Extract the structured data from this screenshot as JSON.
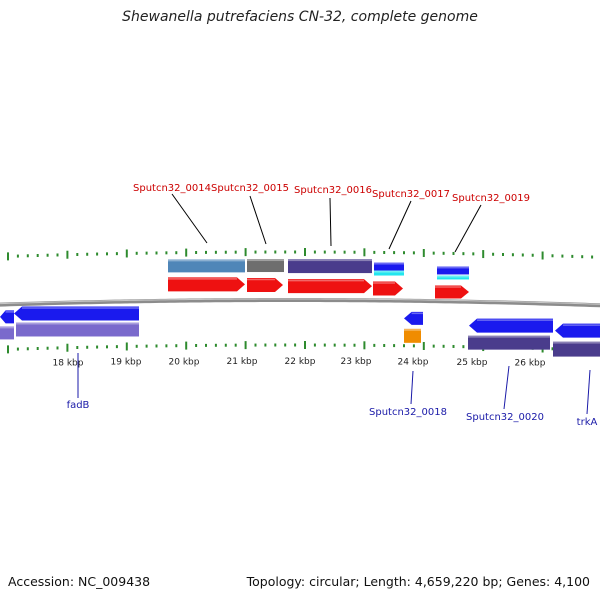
{
  "title": "Shewanella putrefaciens CN-32, complete genome",
  "footer": {
    "accession": "Accession: NC_009438",
    "stats": "Topology: circular; Length: 4,659,220 bp; Genes: 4,100"
  },
  "colors": {
    "backbone": "#8c8c8c",
    "tick": "#2e8b2e",
    "forward_cds": "#ee1111",
    "reverse_cds": "#1a1aee",
    "teal": "#4f86b8",
    "gray": "#6e6e6e",
    "slate": "#4a3c8c",
    "purple": "#7a6acc",
    "cyan": "#22e6ee",
    "orange": "#f08c00",
    "label_red": "#cc0000",
    "label_blue": "#1a1aa8"
  },
  "scale": {
    "labels": [
      "18 kbp",
      "19 kbp",
      "20 kbp",
      "21 kbp",
      "22 kbp",
      "23 kbp",
      "24 kbp",
      "25 kbp",
      "26 kbp"
    ]
  },
  "genes_top": [
    "Sputcn32_0014",
    "Sputcn32_0015",
    "Sputcn32_0016",
    "Sputcn32_0017",
    "Sputcn32_0019"
  ],
  "genes_bottom": [
    "fadB",
    "Sputcn32_0018",
    "Sputcn32_0020",
    "trkA"
  ]
}
